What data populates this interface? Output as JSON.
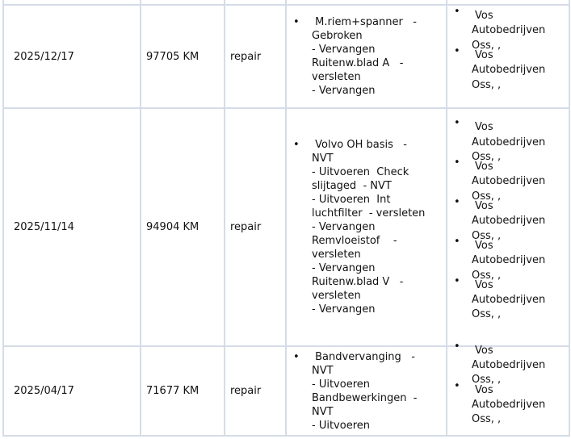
{
  "rows": [
    {
      "date": "2025/12/17",
      "mileage": "97705 KM",
      "type": "repair",
      "description_lines": [
        " M.riem+spanner   -",
        "Gebroken",
        "- Vervangen",
        "Ruitenw.blad A   -",
        "versleten",
        "- Vervangen"
      ],
      "vendors": [
        [
          "Vos",
          "Autobedrijven",
          "Oss, ,"
        ],
        [
          "Vos",
          "Autobedrijven",
          "Oss, ,"
        ]
      ]
    },
    {
      "date": "2025/11/14",
      "mileage": "94904 KM",
      "type": "repair",
      "description_lines": [
        " Volvo OH basis   -",
        "NVT",
        "- Uitvoeren  Check",
        "slijtaged  - NVT",
        "- Uitvoeren  Int",
        "luchtfilter  - versleten",
        "- Vervangen",
        "Remvloeistof    -",
        "versleten",
        "- Vervangen",
        "Ruitenw.blad V   -",
        "versleten",
        "- Vervangen"
      ],
      "vendors": [
        [
          "Vos",
          "Autobedrijven",
          "Oss, ,"
        ],
        [
          "Vos",
          "Autobedrijven",
          "Oss, ,"
        ],
        [
          "Vos",
          "Autobedrijven",
          "Oss, ,"
        ],
        [
          "Vos",
          "Autobedrijven",
          "Oss, ,"
        ],
        [
          "Vos",
          "Autobedrijven",
          "Oss, ,"
        ]
      ]
    },
    {
      "date": "2025/04/17",
      "mileage": "71677 KM",
      "type": "repair",
      "description_lines": [
        " Bandvervanging   -",
        "NVT",
        "- Uitvoeren",
        "Bandbewerkingen  -",
        "NVT",
        "- Uitvoeren"
      ],
      "vendors": [
        [
          "Vos",
          "Autobedrijven",
          "Oss, ,"
        ],
        [
          "Vos",
          "Autobedrijven",
          "Oss, ,"
        ]
      ]
    }
  ],
  "bullet": "•",
  "colors": {
    "border": "#d5dce7",
    "text": "#111111"
  }
}
